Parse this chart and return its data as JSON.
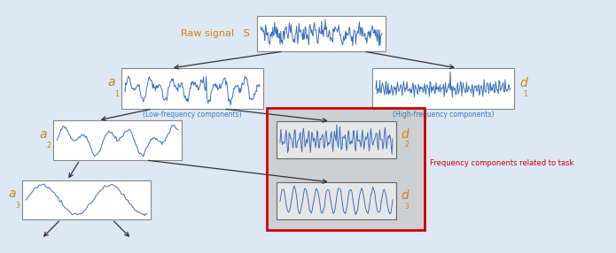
{
  "background_color": "#dce8f3",
  "box_color": "#ffffff",
  "box_edge_color": "#888888",
  "signal_color": "#3a6fbf",
  "red_box_color": "#cc0000",
  "gray_fill_color": "#c8c8c8",
  "arrow_color": "#333333",
  "text_raw": "Raw signal   S",
  "text_low": "(Low-frequency components)",
  "text_high": "(High-frequency components)",
  "text_freq_task": "Frequency components related to task",
  "label_orange": "#d4820a",
  "label_blue": "#3a7abf"
}
